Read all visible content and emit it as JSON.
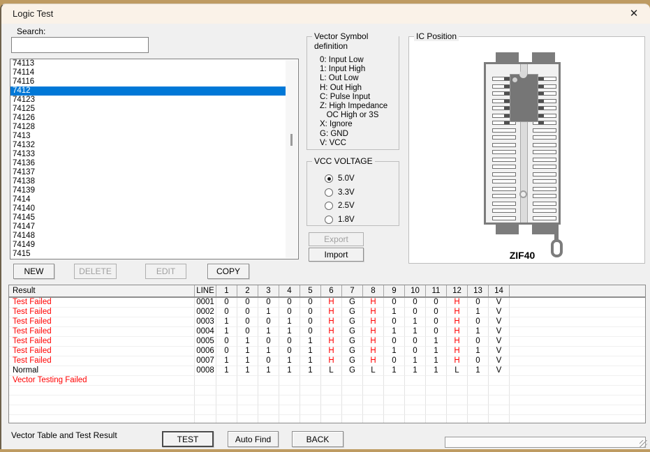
{
  "window": {
    "title": "Logic Test",
    "close_icon": "✕"
  },
  "search": {
    "label": "Search:",
    "value": ""
  },
  "ic_list": {
    "items": [
      "74113",
      "74114",
      "74116",
      "7412",
      "74123",
      "74125",
      "74126",
      "74128",
      "7413",
      "74132",
      "74133",
      "74136",
      "74137",
      "74138",
      "74139",
      "7414",
      "74140",
      "74145",
      "74147",
      "74148",
      "74149",
      "7415"
    ],
    "selected_index": 3
  },
  "list_buttons": {
    "new": {
      "label": "NEW",
      "enabled": true
    },
    "delete": {
      "label": "DELETE",
      "enabled": false
    },
    "edit": {
      "label": "EDIT",
      "enabled": false
    },
    "copy": {
      "label": "COPY",
      "enabled": true
    }
  },
  "vector_symbols": {
    "title": "Vector Symbol definition",
    "lines": [
      "0: Input Low",
      "1: Input High",
      "L: Out Low",
      "H: Out High",
      "C: Pulse Input",
      "Z: High Impedance",
      "   OC High or 3S",
      "X: Ignore",
      "G: GND",
      "V: VCC"
    ]
  },
  "vcc": {
    "title": "VCC VOLTAGE",
    "options": [
      {
        "label": "5.0V",
        "selected": true
      },
      {
        "label": "3.3V",
        "selected": false
      },
      {
        "label": "2.5V",
        "selected": false
      },
      {
        "label": "1.8V",
        "selected": false
      }
    ]
  },
  "io_buttons": {
    "export": {
      "label": "Export",
      "enabled": false
    },
    "import": {
      "label": "Import",
      "enabled": true
    }
  },
  "ic_position": {
    "title": "IC Position",
    "socket_label": "ZIF40",
    "pins_per_side": 20,
    "chip_pin_rows": 7
  },
  "vector_table": {
    "headers": [
      "Result",
      "LINE",
      "1",
      "2",
      "3",
      "4",
      "5",
      "6",
      "7",
      "8",
      "9",
      "10",
      "11",
      "12",
      "13",
      "14"
    ],
    "rows": [
      {
        "result": "Test Failed",
        "fail": true,
        "line": "0001",
        "values": [
          "0",
          "0",
          "0",
          "0",
          "0",
          "H",
          "G",
          "H",
          "0",
          "0",
          "0",
          "H",
          "0",
          "V"
        ]
      },
      {
        "result": "Test Failed",
        "fail": true,
        "line": "0002",
        "values": [
          "0",
          "0",
          "1",
          "0",
          "0",
          "H",
          "G",
          "H",
          "1",
          "0",
          "0",
          "H",
          "1",
          "V"
        ]
      },
      {
        "result": "Test Failed",
        "fail": true,
        "line": "0003",
        "values": [
          "1",
          "0",
          "0",
          "1",
          "0",
          "H",
          "G",
          "H",
          "0",
          "1",
          "0",
          "H",
          "0",
          "V"
        ]
      },
      {
        "result": "Test Failed",
        "fail": true,
        "line": "0004",
        "values": [
          "1",
          "0",
          "1",
          "1",
          "0",
          "H",
          "G",
          "H",
          "1",
          "1",
          "0",
          "H",
          "1",
          "V"
        ]
      },
      {
        "result": "Test Failed",
        "fail": true,
        "line": "0005",
        "values": [
          "0",
          "1",
          "0",
          "0",
          "1",
          "H",
          "G",
          "H",
          "0",
          "0",
          "1",
          "H",
          "0",
          "V"
        ]
      },
      {
        "result": "Test Failed",
        "fail": true,
        "line": "0006",
        "values": [
          "0",
          "1",
          "1",
          "0",
          "1",
          "H",
          "G",
          "H",
          "1",
          "0",
          "1",
          "H",
          "1",
          "V"
        ]
      },
      {
        "result": "Test Failed",
        "fail": true,
        "line": "0007",
        "values": [
          "1",
          "1",
          "0",
          "1",
          "1",
          "H",
          "G",
          "H",
          "0",
          "1",
          "1",
          "H",
          "0",
          "V"
        ]
      },
      {
        "result": "Normal",
        "fail": false,
        "line": "0008",
        "values": [
          "1",
          "1",
          "1",
          "1",
          "1",
          "L",
          "G",
          "L",
          "1",
          "1",
          "1",
          "L",
          "1",
          "V"
        ]
      },
      {
        "result": "Vector Testing Failed",
        "fail": true,
        "line": "",
        "values": [
          "",
          "",
          "",
          "",
          "",
          "",
          "",
          "",
          "",
          "",
          "",
          "",
          "",
          ""
        ]
      }
    ],
    "empty_rows": 4,
    "fail_color": "#FF0000"
  },
  "footer": {
    "label": "Vector Table and Test Result",
    "test": "TEST",
    "auto_find": "Auto Find",
    "back": "BACK"
  },
  "colors": {
    "selection": "#0078D7",
    "fail": "#FF0000",
    "titlebar": "#FAF2E8"
  }
}
